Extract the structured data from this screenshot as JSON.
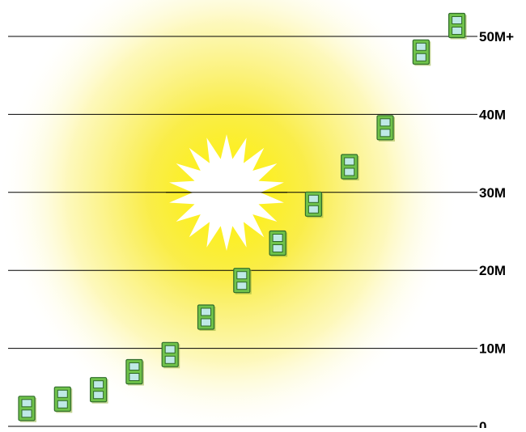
{
  "chart_data": {
    "type": "scatter",
    "title": "",
    "xlabel": "",
    "ylabel": "",
    "y_tick_labels": [
      "0",
      "10M",
      "20M",
      "30M",
      "40M",
      "50M+"
    ],
    "y_tick_values": [
      0,
      10,
      20,
      30,
      40,
      50
    ],
    "ylim": [
      0,
      50
    ],
    "grid": true,
    "legend": "none",
    "series": [
      {
        "marker": "window-icon",
        "points": [
          {
            "x": 1,
            "y": 2.3
          },
          {
            "x": 2,
            "y": 3.5
          },
          {
            "x": 3,
            "y": 4.7
          },
          {
            "x": 4,
            "y": 7.0
          },
          {
            "x": 5,
            "y": 9.2
          },
          {
            "x": 6,
            "y": 14.0
          },
          {
            "x": 7,
            "y": 18.7
          },
          {
            "x": 8,
            "y": 23.5
          },
          {
            "x": 9,
            "y": 28.5
          },
          {
            "x": 10,
            "y": 33.3
          },
          {
            "x": 11,
            "y": 38.3
          },
          {
            "x": 12,
            "y": 48.0
          },
          {
            "x": 13,
            "y": 51.4
          }
        ]
      }
    ]
  },
  "colors": {
    "marker_fill": "#6fc24a",
    "marker_stroke": "#2f6b2a",
    "marker_pane": "#bfe9e6",
    "sun_core": "#ffffff",
    "glow_inner": "#f4e500",
    "glow_outer": "#fffbe0",
    "gridline": "#000000"
  },
  "decorations": {
    "background": "sun-glow",
    "sun_icon": "sun-burst-icon"
  }
}
